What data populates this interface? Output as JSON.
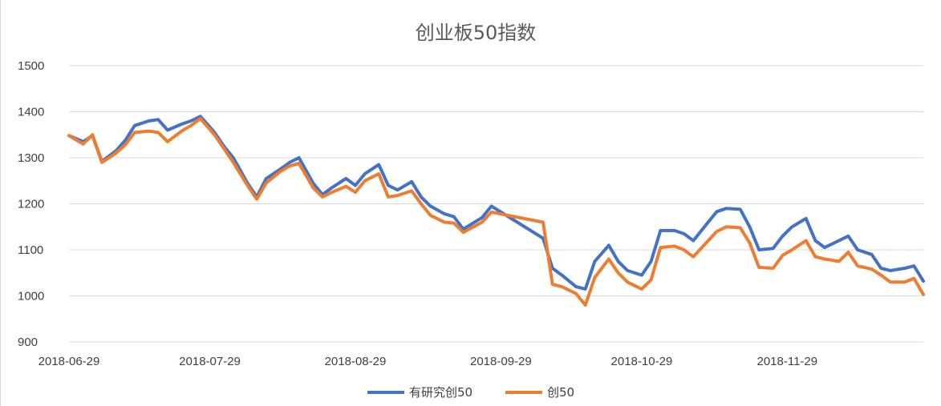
{
  "chart_data": {
    "type": "line",
    "title": "创业板50指数",
    "xlabel": "",
    "ylabel": "",
    "ylim": [
      900,
      1500
    ],
    "y_ticks": [
      "900",
      "1000",
      "1100",
      "1200",
      "1300",
      "1400",
      "1500"
    ],
    "x_tick_labels": [
      "2018-06-29",
      "2018-07-29",
      "2018-08-29",
      "2018-09-29",
      "2018-10-29",
      "2018-11-29"
    ],
    "x_dates": [
      "2018-06-29",
      "2018-07-02",
      "2018-07-04",
      "2018-07-06",
      "2018-07-09",
      "2018-07-11",
      "2018-07-13",
      "2018-07-16",
      "2018-07-18",
      "2018-07-20",
      "2018-07-23",
      "2018-07-25",
      "2018-07-27",
      "2018-07-30",
      "2018-08-01",
      "2018-08-03",
      "2018-08-06",
      "2018-08-08",
      "2018-08-10",
      "2018-08-13",
      "2018-08-15",
      "2018-08-17",
      "2018-08-20",
      "2018-08-22",
      "2018-08-24",
      "2018-08-27",
      "2018-08-29",
      "2018-08-31",
      "2018-09-03",
      "2018-09-05",
      "2018-09-07",
      "2018-09-10",
      "2018-09-12",
      "2018-09-14",
      "2018-09-17",
      "2018-09-19",
      "2018-09-21",
      "2018-09-25",
      "2018-09-27",
      "2018-10-08",
      "2018-10-10",
      "2018-10-12",
      "2018-10-15",
      "2018-10-17",
      "2018-10-19",
      "2018-10-22",
      "2018-10-24",
      "2018-10-26",
      "2018-10-29",
      "2018-10-31",
      "2018-11-02",
      "2018-11-05",
      "2018-11-07",
      "2018-11-09",
      "2018-11-12",
      "2018-11-14",
      "2018-11-16",
      "2018-11-19",
      "2018-11-21",
      "2018-11-23",
      "2018-11-26",
      "2018-11-28",
      "2018-11-30",
      "2018-12-03",
      "2018-12-05",
      "2018-12-07",
      "2018-12-10",
      "2018-12-12",
      "2018-12-14",
      "2018-12-17",
      "2018-12-19",
      "2018-12-21",
      "2018-12-24",
      "2018-12-26",
      "2018-12-28"
    ],
    "series": [
      {
        "name": "有研究创50",
        "color": "#4472C4",
        "values": [
          1348,
          1335,
          1348,
          1292,
          1315,
          1338,
          1370,
          1380,
          1383,
          1360,
          1373,
          1380,
          1390,
          1355,
          1325,
          1300,
          1245,
          1215,
          1255,
          1275,
          1290,
          1300,
          1245,
          1220,
          1235,
          1255,
          1240,
          1265,
          1285,
          1240,
          1230,
          1248,
          1215,
          1195,
          1178,
          1172,
          1145,
          1170,
          1195,
          1125,
          1060,
          1045,
          1020,
          1015,
          1075,
          1110,
          1075,
          1055,
          1045,
          1075,
          1142,
          1142,
          1135,
          1120,
          1158,
          1183,
          1190,
          1188,
          1150,
          1100,
          1103,
          1130,
          1150,
          1168,
          1120,
          1105,
          1120,
          1130,
          1100,
          1090,
          1060,
          1055,
          1060,
          1065,
          1032
        ],
        "label_key": "legend.series_1"
      },
      {
        "name": "创50",
        "color": "#ED7D31",
        "values": [
          1348,
          1330,
          1350,
          1290,
          1310,
          1328,
          1355,
          1358,
          1355,
          1335,
          1358,
          1370,
          1385,
          1350,
          1320,
          1290,
          1240,
          1210,
          1245,
          1270,
          1282,
          1288,
          1235,
          1215,
          1225,
          1238,
          1225,
          1250,
          1265,
          1215,
          1218,
          1228,
          1200,
          1175,
          1160,
          1158,
          1138,
          1160,
          1182,
          1160,
          1025,
          1020,
          1005,
          980,
          1040,
          1080,
          1050,
          1030,
          1015,
          1035,
          1105,
          1108,
          1100,
          1085,
          1118,
          1140,
          1150,
          1148,
          1115,
          1062,
          1060,
          1088,
          1100,
          1120,
          1085,
          1080,
          1075,
          1095,
          1065,
          1058,
          1045,
          1030,
          1030,
          1038,
          1003
        ],
        "label_key": "legend.series_2"
      }
    ],
    "legend": {
      "position": "bottom"
    },
    "grid": {
      "horizontal": true,
      "vertical": false
    }
  },
  "legend": {
    "series_1": "有研究创50",
    "series_2": "创50"
  }
}
